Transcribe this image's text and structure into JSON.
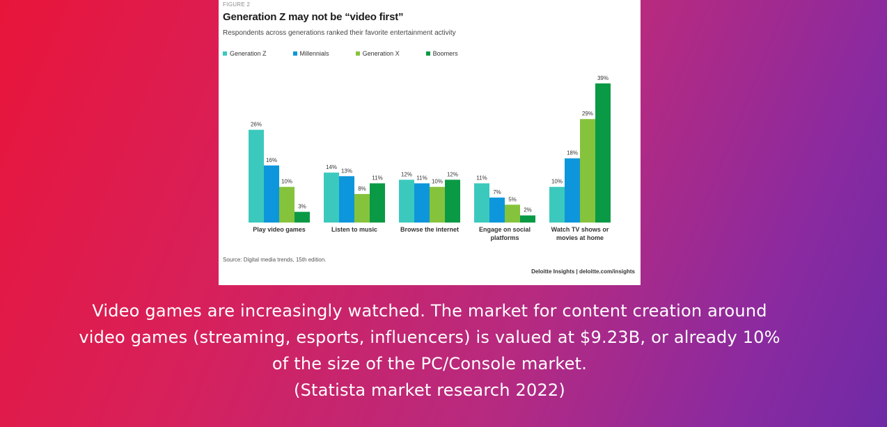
{
  "figure": {
    "label": "FIGURE 2",
    "title": "Generation Z may not be “video first”",
    "subtitle": "Respondents across generations ranked their favorite entertainment activity",
    "source": "Source: Digital media trends, 15th edition.",
    "credit": "Deloitte Insights | deloitte.com/insights"
  },
  "chart_data": {
    "type": "bar",
    "categories": [
      [
        "Play video games"
      ],
      [
        "Listen to music"
      ],
      [
        "Browse the internet"
      ],
      [
        "Engage on social",
        "platforms"
      ],
      [
        "Watch TV shows or",
        "movies at home"
      ]
    ],
    "series": [
      {
        "name": "Generation Z",
        "color": "#3cc9bd",
        "values": [
          26,
          14,
          12,
          11,
          10
        ]
      },
      {
        "name": "Millennials",
        "color": "#0d96db",
        "values": [
          16,
          13,
          11,
          7,
          18
        ]
      },
      {
        "name": "Generation X",
        "color": "#86c33c",
        "values": [
          10,
          8,
          10,
          5,
          29
        ]
      },
      {
        "name": "Boomers",
        "color": "#0a9a45",
        "values": [
          3,
          11,
          12,
          2,
          39
        ]
      }
    ],
    "value_suffix": "%",
    "ylim": [
      0,
      40
    ],
    "grid": false,
    "legend": "top-left"
  },
  "caption": {
    "lines": [
      "Video games are increasingly watched. The market for content creation around",
      "video games (streaming, esports, influencers) is valued at $9.23B, or already 10%",
      "of the size of the PC/Console market.",
      "(Statista market research 2022)"
    ]
  }
}
